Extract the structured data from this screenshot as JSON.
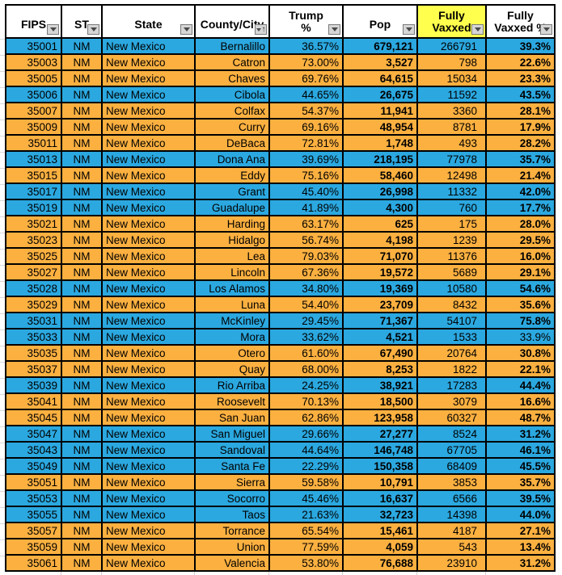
{
  "colors": {
    "dem_row": "#2BA8E0",
    "rep_row": "#FBB040",
    "header_bg": "#FFFFFF",
    "header_highlight": "#FFFF4D",
    "grid_border": "#000000",
    "text": "#000000"
  },
  "table": {
    "headers": [
      {
        "id": "fips",
        "label": "FIPS",
        "lines": [
          "FIPS"
        ],
        "filter": "dropdown"
      },
      {
        "id": "st",
        "label": "ST",
        "lines": [
          "ST"
        ],
        "filter": "dropdown"
      },
      {
        "id": "state",
        "label": "State",
        "lines": [
          "State"
        ],
        "filter": "dropdown"
      },
      {
        "id": "county",
        "label": "County/City",
        "lines": [
          "County/City"
        ],
        "filter": "sort-asc-dropdown"
      },
      {
        "id": "trump-pct",
        "label": "Trump %",
        "lines": [
          "Trump",
          "%"
        ],
        "filter": "dropdown"
      },
      {
        "id": "pop",
        "label": "Pop",
        "lines": [
          "Pop"
        ],
        "filter": "dropdown"
      },
      {
        "id": "fully-vaxxed",
        "label": "Fully Vaxxed",
        "lines": [
          "Fully",
          "Vaxxed"
        ],
        "filter": "dropdown",
        "highlight": true
      },
      {
        "id": "fully-vaxxed-pct",
        "label": "Fully Vaxxed %",
        "lines": [
          "Fully",
          "Vaxxed %"
        ],
        "filter": "dropdown"
      }
    ],
    "rows": [
      {
        "fips": "35001",
        "st": "NM",
        "state": "New Mexico",
        "county": "Bernalillo",
        "trump_pct": "36.57%",
        "pop": "679,121",
        "fully_vaxxed": "266791",
        "fully_vaxxed_pct": "39.3%",
        "party": "blue"
      },
      {
        "fips": "35003",
        "st": "NM",
        "state": "New Mexico",
        "county": "Catron",
        "trump_pct": "73.00%",
        "pop": "3,527",
        "fully_vaxxed": "798",
        "fully_vaxxed_pct": "22.6%",
        "party": "orange"
      },
      {
        "fips": "35005",
        "st": "NM",
        "state": "New Mexico",
        "county": "Chaves",
        "trump_pct": "69.76%",
        "pop": "64,615",
        "fully_vaxxed": "15034",
        "fully_vaxxed_pct": "23.3%",
        "party": "orange"
      },
      {
        "fips": "35006",
        "st": "NM",
        "state": "New Mexico",
        "county": "Cibola",
        "trump_pct": "44.65%",
        "pop": "26,675",
        "fully_vaxxed": "11592",
        "fully_vaxxed_pct": "43.5%",
        "party": "blue"
      },
      {
        "fips": "35007",
        "st": "NM",
        "state": "New Mexico",
        "county": "Colfax",
        "trump_pct": "54.37%",
        "pop": "11,941",
        "fully_vaxxed": "3360",
        "fully_vaxxed_pct": "28.1%",
        "party": "orange"
      },
      {
        "fips": "35009",
        "st": "NM",
        "state": "New Mexico",
        "county": "Curry",
        "trump_pct": "69.16%",
        "pop": "48,954",
        "fully_vaxxed": "8781",
        "fully_vaxxed_pct": "17.9%",
        "party": "orange"
      },
      {
        "fips": "35011",
        "st": "NM",
        "state": "New Mexico",
        "county": "DeBaca",
        "trump_pct": "72.81%",
        "pop": "1,748",
        "fully_vaxxed": "493",
        "fully_vaxxed_pct": "28.2%",
        "party": "orange"
      },
      {
        "fips": "35013",
        "st": "NM",
        "state": "New Mexico",
        "county": "Dona Ana",
        "trump_pct": "39.69%",
        "pop": "218,195",
        "fully_vaxxed": "77978",
        "fully_vaxxed_pct": "35.7%",
        "party": "blue"
      },
      {
        "fips": "35015",
        "st": "NM",
        "state": "New Mexico",
        "county": "Eddy",
        "trump_pct": "75.16%",
        "pop": "58,460",
        "fully_vaxxed": "12498",
        "fully_vaxxed_pct": "21.4%",
        "party": "orange"
      },
      {
        "fips": "35017",
        "st": "NM",
        "state": "New Mexico",
        "county": "Grant",
        "trump_pct": "45.40%",
        "pop": "26,998",
        "fully_vaxxed": "11332",
        "fully_vaxxed_pct": "42.0%",
        "party": "blue"
      },
      {
        "fips": "35019",
        "st": "NM",
        "state": "New Mexico",
        "county": "Guadalupe",
        "trump_pct": "41.89%",
        "pop": "4,300",
        "fully_vaxxed": "760",
        "fully_vaxxed_pct": "17.7%",
        "party": "blue"
      },
      {
        "fips": "35021",
        "st": "NM",
        "state": "New Mexico",
        "county": "Harding",
        "trump_pct": "63.17%",
        "pop": "625",
        "fully_vaxxed": "175",
        "fully_vaxxed_pct": "28.0%",
        "party": "orange"
      },
      {
        "fips": "35023",
        "st": "NM",
        "state": "New Mexico",
        "county": "Hidalgo",
        "trump_pct": "56.74%",
        "pop": "4,198",
        "fully_vaxxed": "1239",
        "fully_vaxxed_pct": "29.5%",
        "party": "orange"
      },
      {
        "fips": "35025",
        "st": "NM",
        "state": "New Mexico",
        "county": "Lea",
        "trump_pct": "79.03%",
        "pop": "71,070",
        "fully_vaxxed": "11376",
        "fully_vaxxed_pct": "16.0%",
        "party": "orange"
      },
      {
        "fips": "35027",
        "st": "NM",
        "state": "New Mexico",
        "county": "Lincoln",
        "trump_pct": "67.36%",
        "pop": "19,572",
        "fully_vaxxed": "5689",
        "fully_vaxxed_pct": "29.1%",
        "party": "orange"
      },
      {
        "fips": "35028",
        "st": "NM",
        "state": "New Mexico",
        "county": "Los Alamos",
        "trump_pct": "34.80%",
        "pop": "19,369",
        "fully_vaxxed": "10580",
        "fully_vaxxed_pct": "54.6%",
        "party": "blue"
      },
      {
        "fips": "35029",
        "st": "NM",
        "state": "New Mexico",
        "county": "Luna",
        "trump_pct": "54.40%",
        "pop": "23,709",
        "fully_vaxxed": "8432",
        "fully_vaxxed_pct": "35.6%",
        "party": "orange"
      },
      {
        "fips": "35031",
        "st": "NM",
        "state": "New Mexico",
        "county": "McKinley",
        "trump_pct": "29.45%",
        "pop": "71,367",
        "fully_vaxxed": "54107",
        "fully_vaxxed_pct": "75.8%",
        "party": "blue"
      },
      {
        "fips": "35033",
        "st": "NM",
        "state": "New Mexico",
        "county": "Mora",
        "trump_pct": "33.62%",
        "pop": "4,521",
        "fully_vaxxed": "1533",
        "fully_vaxxed_pct": "33.9%",
        "party": "blue",
        "pct_bold": false
      },
      {
        "fips": "35035",
        "st": "NM",
        "state": "New Mexico",
        "county": "Otero",
        "trump_pct": "61.60%",
        "pop": "67,490",
        "fully_vaxxed": "20764",
        "fully_vaxxed_pct": "30.8%",
        "party": "orange"
      },
      {
        "fips": "35037",
        "st": "NM",
        "state": "New Mexico",
        "county": "Quay",
        "trump_pct": "68.00%",
        "pop": "8,253",
        "fully_vaxxed": "1822",
        "fully_vaxxed_pct": "22.1%",
        "party": "orange"
      },
      {
        "fips": "35039",
        "st": "NM",
        "state": "New Mexico",
        "county": "Rio Arriba",
        "trump_pct": "24.25%",
        "pop": "38,921",
        "fully_vaxxed": "17283",
        "fully_vaxxed_pct": "44.4%",
        "party": "blue"
      },
      {
        "fips": "35041",
        "st": "NM",
        "state": "New Mexico",
        "county": "Roosevelt",
        "trump_pct": "70.13%",
        "pop": "18,500",
        "fully_vaxxed": "3079",
        "fully_vaxxed_pct": "16.6%",
        "party": "orange"
      },
      {
        "fips": "35045",
        "st": "NM",
        "state": "New Mexico",
        "county": "San Juan",
        "trump_pct": "62.86%",
        "pop": "123,958",
        "fully_vaxxed": "60327",
        "fully_vaxxed_pct": "48.7%",
        "party": "orange"
      },
      {
        "fips": "35047",
        "st": "NM",
        "state": "New Mexico",
        "county": "San Miguel",
        "trump_pct": "29.66%",
        "pop": "27,277",
        "fully_vaxxed": "8524",
        "fully_vaxxed_pct": "31.2%",
        "party": "blue"
      },
      {
        "fips": "35043",
        "st": "NM",
        "state": "New Mexico",
        "county": "Sandoval",
        "trump_pct": "44.64%",
        "pop": "146,748",
        "fully_vaxxed": "67705",
        "fully_vaxxed_pct": "46.1%",
        "party": "blue"
      },
      {
        "fips": "35049",
        "st": "NM",
        "state": "New Mexico",
        "county": "Santa Fe",
        "trump_pct": "22.29%",
        "pop": "150,358",
        "fully_vaxxed": "68409",
        "fully_vaxxed_pct": "45.5%",
        "party": "blue"
      },
      {
        "fips": "35051",
        "st": "NM",
        "state": "New Mexico",
        "county": "Sierra",
        "trump_pct": "59.58%",
        "pop": "10,791",
        "fully_vaxxed": "3853",
        "fully_vaxxed_pct": "35.7%",
        "party": "orange"
      },
      {
        "fips": "35053",
        "st": "NM",
        "state": "New Mexico",
        "county": "Socorro",
        "trump_pct": "45.46%",
        "pop": "16,637",
        "fully_vaxxed": "6566",
        "fully_vaxxed_pct": "39.5%",
        "party": "blue"
      },
      {
        "fips": "35055",
        "st": "NM",
        "state": "New Mexico",
        "county": "Taos",
        "trump_pct": "21.63%",
        "pop": "32,723",
        "fully_vaxxed": "14398",
        "fully_vaxxed_pct": "44.0%",
        "party": "blue"
      },
      {
        "fips": "35057",
        "st": "NM",
        "state": "New Mexico",
        "county": "Torrance",
        "trump_pct": "65.54%",
        "pop": "15,461",
        "fully_vaxxed": "4187",
        "fully_vaxxed_pct": "27.1%",
        "party": "orange"
      },
      {
        "fips": "35059",
        "st": "NM",
        "state": "New Mexico",
        "county": "Union",
        "trump_pct": "77.59%",
        "pop": "4,059",
        "fully_vaxxed": "543",
        "fully_vaxxed_pct": "13.4%",
        "party": "orange"
      },
      {
        "fips": "35061",
        "st": "NM",
        "state": "New Mexico",
        "county": "Valencia",
        "trump_pct": "53.80%",
        "pop": "76,688",
        "fully_vaxxed": "23910",
        "fully_vaxxed_pct": "31.2%",
        "party": "orange"
      }
    ]
  }
}
